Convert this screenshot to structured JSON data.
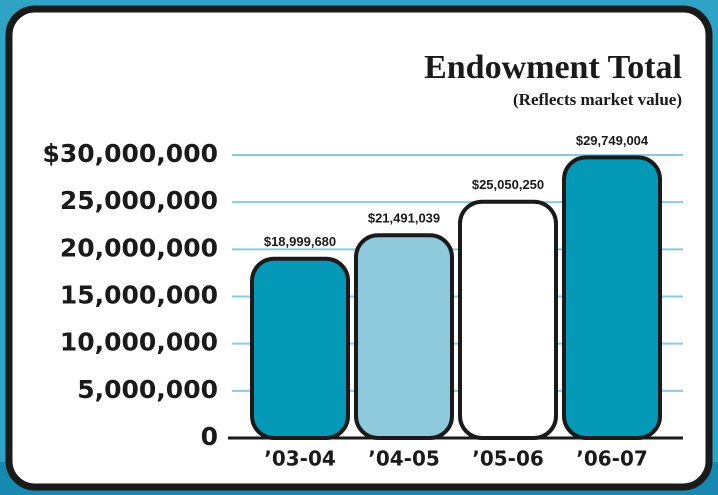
{
  "chart_data": {
    "type": "bar",
    "title": "Endowment Total",
    "subtitle": "(Reflects market value)",
    "categories": [
      "’03-04",
      "’04-05",
      "’05-06",
      "’06-07"
    ],
    "values": [
      18999680,
      21491039,
      25050250,
      29749004
    ],
    "value_labels": [
      "$18,999,680",
      "$21,491,039",
      "$25,050,250",
      "$29,749,004"
    ],
    "colors": [
      "#0399b7",
      "#8ecadc",
      "#ffffff",
      "#0399b7"
    ],
    "ylim": [
      0,
      30000000
    ],
    "yticks": [
      0,
      {
        "value": 5000000,
        "label": "5,000,000"
      },
      {
        "value": 10000000,
        "label": "10,000,000"
      },
      {
        "value": 15000000,
        "label": "15,000,000"
      },
      {
        "value": 20000000,
        "label": "20,000,000"
      },
      {
        "value": 25000000,
        "label": "25,000,000"
      },
      {
        "value": 30000000,
        "label": "$30,000,000"
      }
    ],
    "grid": true
  }
}
